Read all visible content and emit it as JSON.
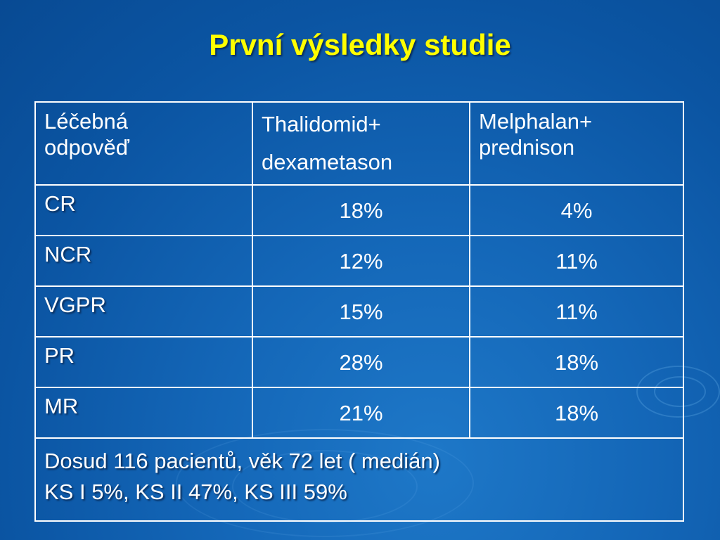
{
  "title": "První výsledky studie",
  "table": {
    "header": {
      "col1": [
        "Léčebná",
        "odpověď"
      ],
      "col2": [
        "Thalidomid+",
        "dexametason"
      ],
      "col3": [
        "Melphalan+",
        "prednison"
      ]
    },
    "rows": [
      {
        "label": "CR",
        "thal": "18%",
        "mel": "4%"
      },
      {
        "label": "NCR",
        "thal": "12%",
        "mel": "11%"
      },
      {
        "label": "VGPR",
        "thal": "15%",
        "mel": "11%"
      },
      {
        "label": "PR",
        "thal": "28%",
        "mel": "18%"
      },
      {
        "label": "MR",
        "thal": "21%",
        "mel": "18%"
      }
    ],
    "footer": [
      "Dosud 116 pacientů, věk 72 let ( medián)",
      "KS I  5%, KS II  47%, KS III  59%"
    ]
  },
  "colors": {
    "title": "#ffff00",
    "text": "#ffffff",
    "background": "#1467b8"
  }
}
